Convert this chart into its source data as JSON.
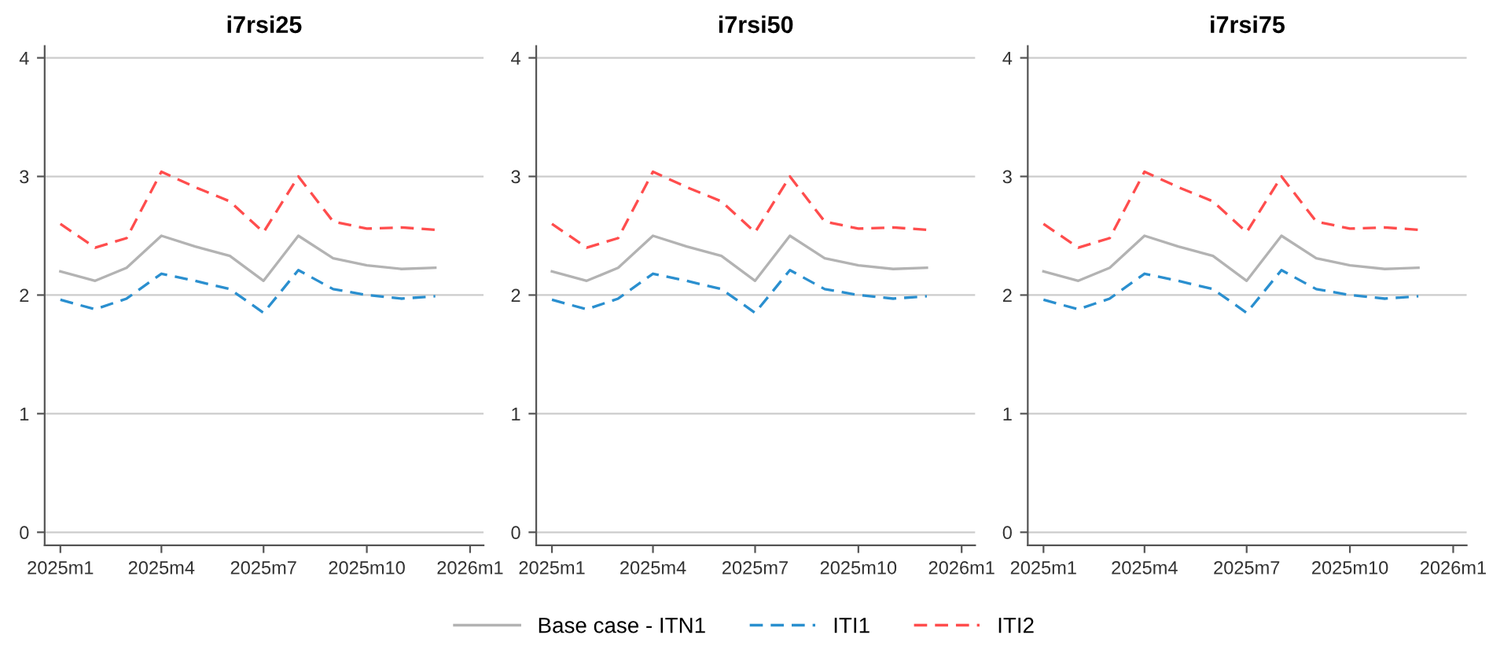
{
  "chart_data": [
    {
      "type": "line",
      "title": "i7rsi25",
      "x": [
        "2025-01",
        "2025-02",
        "2025-03",
        "2025-04",
        "2025-05",
        "2025-06",
        "2025-07",
        "2025-08",
        "2025-09",
        "2025-10",
        "2025-11",
        "2025-12"
      ],
      "xlim": [
        "2024-12-18",
        "2026-01-13"
      ],
      "xticks": [
        {
          "value": "2025-01",
          "label": "2025m1"
        },
        {
          "value": "2025-04",
          "label": "2025m4"
        },
        {
          "value": "2025-07",
          "label": "2025m7"
        },
        {
          "value": "2025-10",
          "label": "2025m10"
        },
        {
          "value": "2026-01",
          "label": "2026m1"
        }
      ],
      "ylim": [
        -0.11,
        4.1
      ],
      "yticks": [
        0,
        1,
        2,
        3,
        4
      ],
      "grid": "y",
      "legend": "bottom",
      "series": [
        {
          "name": "Base case - ITN1",
          "color": "#b3b3b3",
          "line_style": "solid",
          "values": [
            2.2,
            2.12,
            2.23,
            2.5,
            2.41,
            2.33,
            2.12,
            2.5,
            2.31,
            2.25,
            2.22,
            2.23
          ]
        },
        {
          "name": "ITI1",
          "color": "#2a8fcf",
          "line_style": "dashed",
          "values": [
            1.96,
            1.88,
            1.97,
            2.18,
            2.12,
            2.05,
            1.85,
            2.21,
            2.05,
            2.0,
            1.97,
            1.99
          ]
        },
        {
          "name": "ITI2",
          "color": "#ff4d4d",
          "line_style": "dashed",
          "values": [
            2.6,
            2.4,
            2.48,
            3.04,
            2.91,
            2.79,
            2.53,
            3.0,
            2.62,
            2.56,
            2.57,
            2.55
          ]
        }
      ]
    },
    {
      "type": "line",
      "title": "i7rsi50",
      "x": [
        "2025-01",
        "2025-02",
        "2025-03",
        "2025-04",
        "2025-05",
        "2025-06",
        "2025-07",
        "2025-08",
        "2025-09",
        "2025-10",
        "2025-11",
        "2025-12"
      ],
      "xlim": [
        "2024-12-18",
        "2026-01-13"
      ],
      "xticks": [
        {
          "value": "2025-01",
          "label": "2025m1"
        },
        {
          "value": "2025-04",
          "label": "2025m4"
        },
        {
          "value": "2025-07",
          "label": "2025m7"
        },
        {
          "value": "2025-10",
          "label": "2025m10"
        },
        {
          "value": "2026-01",
          "label": "2026m1"
        }
      ],
      "ylim": [
        -0.11,
        4.1
      ],
      "yticks": [
        0,
        1,
        2,
        3,
        4
      ],
      "grid": "y",
      "series": [
        {
          "color": "#b3b3b3",
          "line_style": "solid",
          "values": [
            2.2,
            2.12,
            2.23,
            2.5,
            2.41,
            2.33,
            2.12,
            2.5,
            2.31,
            2.25,
            2.22,
            2.23
          ]
        },
        {
          "color": "#2a8fcf",
          "line_style": "dashed",
          "values": [
            1.96,
            1.88,
            1.97,
            2.18,
            2.12,
            2.05,
            1.85,
            2.21,
            2.05,
            2.0,
            1.97,
            1.99
          ]
        },
        {
          "color": "#ff4d4d",
          "line_style": "dashed",
          "values": [
            2.6,
            2.4,
            2.48,
            3.04,
            2.91,
            2.79,
            2.53,
            3.0,
            2.62,
            2.56,
            2.57,
            2.55
          ]
        }
      ]
    },
    {
      "type": "line",
      "title": "i7rsi75",
      "x": [
        "2025-01",
        "2025-02",
        "2025-03",
        "2025-04",
        "2025-05",
        "2025-06",
        "2025-07",
        "2025-08",
        "2025-09",
        "2025-10",
        "2025-11",
        "2025-12"
      ],
      "xlim": [
        "2024-12-18",
        "2026-01-13"
      ],
      "xticks": [
        {
          "value": "2025-01",
          "label": "2025m1"
        },
        {
          "value": "2025-04",
          "label": "2025m4"
        },
        {
          "value": "2025-07",
          "label": "2025m7"
        },
        {
          "value": "2025-10",
          "label": "2025m10"
        },
        {
          "value": "2026-01",
          "label": "2026m1"
        }
      ],
      "ylim": [
        -0.11,
        4.1
      ],
      "yticks": [
        0,
        1,
        2,
        3,
        4
      ],
      "grid": "y",
      "series": [
        {
          "color": "#b3b3b3",
          "line_style": "solid",
          "values": [
            2.2,
            2.12,
            2.23,
            2.5,
            2.41,
            2.33,
            2.12,
            2.5,
            2.31,
            2.25,
            2.22,
            2.23
          ]
        },
        {
          "color": "#2a8fcf",
          "line_style": "dashed",
          "values": [
            1.96,
            1.88,
            1.97,
            2.18,
            2.12,
            2.05,
            1.85,
            2.21,
            2.05,
            2.0,
            1.97,
            1.99
          ]
        },
        {
          "color": "#ff4d4d",
          "line_style": "dashed",
          "values": [
            2.6,
            2.4,
            2.48,
            3.04,
            2.91,
            2.79,
            2.53,
            3.0,
            2.62,
            2.56,
            2.57,
            2.55
          ]
        }
      ]
    }
  ]
}
